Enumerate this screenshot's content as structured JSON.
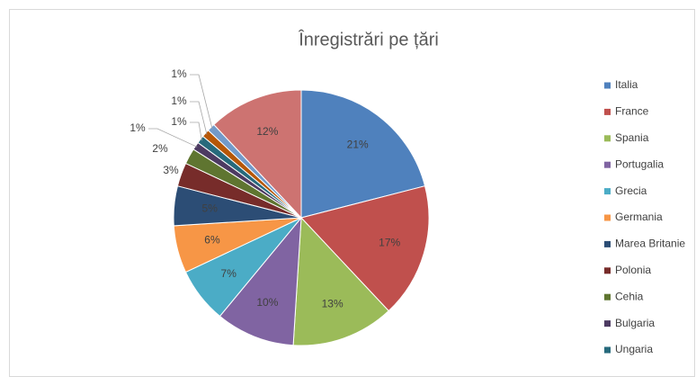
{
  "chart_data": {
    "type": "pie",
    "title": "Înregistrări pe țări",
    "categories": [
      "Italia",
      "France",
      "Spania",
      "Portugalia",
      "Grecia",
      "Germania",
      "Marea Britanie",
      "Polonia",
      "Cehia",
      "Bulgaria",
      "Ungaria",
      null,
      null,
      null
    ],
    "values": [
      21,
      17,
      13,
      10,
      7,
      6,
      5,
      3,
      2,
      1,
      1,
      1,
      1,
      12
    ],
    "value_labels": [
      "21%",
      "17%",
      "13%",
      "10%",
      "7%",
      "6%",
      "5%",
      "3%",
      "2%",
      "1%",
      "1%",
      "1%",
      "1%",
      "12%"
    ],
    "colors": [
      "#4f81bd",
      "#c0504d",
      "#9bbb59",
      "#8064a2",
      "#4bacc6",
      "#f79646",
      "#2c4d75",
      "#772c2a",
      "#5f7530",
      "#4d3b62",
      "#276a7c",
      "#b65708",
      "#729aca",
      "#cd7371"
    ],
    "legend": "right"
  }
}
